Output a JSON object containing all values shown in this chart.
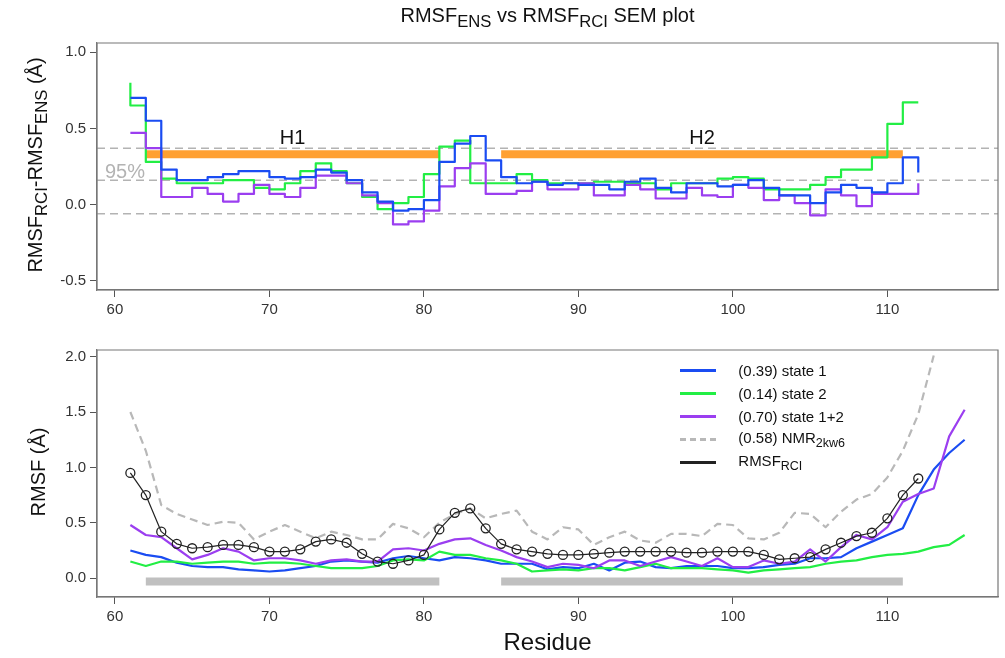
{
  "chart_data": [
    {
      "type": "step",
      "title": "RMSF$_{ENS}$ vs RMSF$_{RCI}$ SEM plot",
      "ylabel": "RMSF$_{RCI}$-RMSF$_{ENS}$ (Å)",
      "x": [
        61,
        62,
        63,
        64,
        65,
        66,
        67,
        68,
        69,
        70,
        71,
        72,
        73,
        74,
        75,
        76,
        77,
        78,
        79,
        80,
        81,
        82,
        83,
        84,
        85,
        86,
        87,
        88,
        89,
        90,
        91,
        92,
        93,
        94,
        95,
        96,
        97,
        98,
        99,
        100,
        101,
        102,
        103,
        104,
        105,
        106,
        107,
        108,
        109,
        110,
        111,
        112
      ],
      "xlim": [
        58.84,
        117.16
      ],
      "xticks": [
        60,
        70,
        80,
        90,
        100,
        110
      ],
      "ylim": [
        -0.56,
        1.06
      ],
      "yticks": [
        {
          "value": -0.5,
          "label": "-0.5"
        },
        {
          "value": 0,
          "label": "0.0"
        },
        {
          "value": 0.5,
          "label": "0.5"
        },
        {
          "value": 1,
          "label": "1.0"
        }
      ],
      "marker": "none",
      "series": [
        {
          "type": "line",
          "name": "H1",
          "color": "#ffa032",
          "x": [
            62,
            81
          ],
          "values": [
            0.33,
            0.33
          ]
        },
        {
          "type": "line",
          "name": "H2",
          "color": "#ffa032",
          "x": [
            85,
            111
          ],
          "values": [
            0.33,
            0.33
          ]
        },
        {
          "color": "#22ee44",
          "x": [
            61,
            61,
            62,
            63,
            64,
            65,
            66,
            67,
            68,
            69,
            70,
            71,
            72,
            73,
            74,
            75,
            76,
            77,
            78,
            79,
            80,
            81,
            82,
            83,
            84,
            85,
            86,
            87,
            88,
            89,
            90,
            91,
            92,
            93,
            94,
            95,
            96,
            97,
            98,
            99,
            100,
            101,
            102,
            103,
            104,
            105,
            106,
            107,
            108,
            109,
            110,
            111,
            112
          ],
          "values": [
            0.8,
            0.65,
            0.28,
            0.17,
            0.14,
            0.14,
            0.14,
            0.16,
            0.16,
            0.11,
            0.1,
            0.14,
            0.22,
            0.27,
            0.22,
            0.14,
            0.05,
            -0.03,
            0.01,
            0.05,
            0.2,
            0.38,
            0.42,
            0.14,
            0.14,
            0.14,
            0.2,
            0.16,
            0.14,
            0.14,
            0.14,
            0.15,
            0.15,
            0.14,
            0.14,
            0.1,
            0.14,
            0.14,
            0.14,
            0.17,
            0.18,
            0.17,
            0.1,
            0.1,
            0.1,
            0.13,
            0.18,
            0.23,
            0.23,
            0.31,
            0.53,
            0.67,
            0.67
          ]
        },
        {
          "color": "#9b3ef0",
          "values": [
            0.47,
            0.37,
            0.05,
            0.05,
            0.11,
            0.07,
            0.02,
            0.07,
            0.13,
            0.07,
            0.05,
            0.11,
            0.19,
            0.19,
            0.14,
            0.06,
            0.01,
            -0.13,
            -0.11,
            -0.04,
            0.12,
            0.24,
            0.27,
            0.07,
            0.07,
            0.09,
            0.15,
            0.1,
            0.1,
            0.14,
            0.06,
            0.06,
            0.13,
            0.1,
            0.04,
            0.04,
            0.11,
            0.06,
            0.05,
            0.13,
            0.11,
            0.03,
            0.06,
            0.01,
            -0.07,
            0.1,
            0.06,
            -0.01,
            0.07,
            0.07,
            0.07,
            0.14
          ]
        },
        {
          "color": "#1a4cf2",
          "values": [
            0.7,
            0.55,
            0.23,
            0.16,
            0.16,
            0.18,
            0.2,
            0.22,
            0.22,
            0.18,
            0.17,
            0.18,
            0.23,
            0.21,
            0.16,
            0.08,
            0.02,
            -0.04,
            -0.03,
            0.03,
            0.28,
            0.4,
            0.45,
            0.29,
            0.18,
            0.14,
            0.15,
            0.13,
            0.14,
            0.13,
            0.13,
            0.1,
            0.15,
            0.17,
            0.11,
            0.08,
            0.14,
            0.14,
            0.12,
            0.13,
            0.16,
            0.11,
            0.06,
            0.06,
            0.01,
            0.08,
            0.13,
            0.11,
            0.08,
            0.14,
            0.31,
            0.21
          ]
        }
      ],
      "ref_lines": [
        {
          "axis": "y",
          "value": 0.37,
          "color": "#b3b3b3",
          "line_style": "dashed"
        },
        {
          "axis": "y",
          "value": 0.16,
          "color": "#b3b3b3",
          "line_style": "dashed"
        },
        {
          "axis": "y",
          "value": -0.06,
          "color": "#b3b3b3",
          "line_style": "dashed"
        }
      ],
      "annotations": [
        "95%"
      ]
    },
    {
      "type": "line",
      "xlabel": "Residue",
      "ylabel": "RMSF (Å)",
      "x": [
        61,
        62,
        63,
        64,
        65,
        66,
        67,
        68,
        69,
        70,
        71,
        72,
        73,
        74,
        75,
        76,
        77,
        78,
        79,
        80,
        81,
        82,
        83,
        84,
        85,
        86,
        87,
        88,
        89,
        90,
        91,
        92,
        93,
        94,
        95,
        96,
        97,
        98,
        99,
        100,
        101,
        102,
        103,
        104,
        105,
        106,
        107,
        108,
        109,
        110,
        111,
        112,
        113,
        114,
        115
      ],
      "xlim": [
        58.84,
        117.16
      ],
      "xticks": [
        60,
        70,
        80,
        90,
        100,
        110
      ],
      "ylim": [
        -0.17,
        2.06
      ],
      "yticks": [
        {
          "value": 0,
          "label": "0.0"
        },
        {
          "value": 0.5,
          "label": "0.5"
        },
        {
          "value": 1,
          "label": "1.0"
        },
        {
          "value": 1.5,
          "label": "1.5"
        },
        {
          "value": 2,
          "label": "2.0"
        }
      ],
      "marker": "none",
      "legend": "top right",
      "series": [
        {
          "color": "#c0c0c0",
          "x": [
            62,
            81
          ],
          "values": [
            -0.03,
            -0.03
          ]
        },
        {
          "color": "#c0c0c0",
          "x": [
            85,
            111
          ],
          "values": [
            -0.03,
            -0.03
          ]
        },
        {
          "name": "(0.39) state 1",
          "color": "#1a4cf2",
          "values": [
            0.25,
            0.21,
            0.19,
            0.14,
            0.11,
            0.1,
            0.1,
            0.08,
            0.07,
            0.06,
            0.07,
            0.09,
            0.11,
            0.15,
            0.16,
            0.15,
            0.14,
            0.18,
            0.2,
            0.18,
            0.16,
            0.19,
            0.18,
            0.16,
            0.13,
            0.13,
            0.13,
            0.08,
            0.1,
            0.09,
            0.13,
            0.07,
            0.14,
            0.15,
            0.1,
            0.09,
            0.11,
            0.11,
            0.11,
            0.09,
            0.09,
            0.1,
            0.12,
            0.13,
            0.18,
            0.18,
            0.19,
            0.27,
            0.33,
            0.39,
            0.45,
            0.75,
            0.98,
            1.13,
            1.25
          ]
        },
        {
          "name": "(0.14) state 2",
          "color": "#22ee44",
          "values": [
            0.15,
            0.11,
            0.15,
            0.15,
            0.13,
            0.14,
            0.15,
            0.15,
            0.13,
            0.14,
            0.14,
            0.13,
            0.11,
            0.09,
            0.09,
            0.09,
            0.11,
            0.16,
            0.17,
            0.16,
            0.24,
            0.21,
            0.21,
            0.18,
            0.16,
            0.13,
            0.06,
            0.07,
            0.08,
            0.07,
            0.09,
            0.09,
            0.07,
            0.1,
            0.13,
            0.09,
            0.09,
            0.09,
            0.08,
            0.07,
            0.05,
            0.07,
            0.08,
            0.09,
            0.1,
            0.13,
            0.15,
            0.16,
            0.19,
            0.21,
            0.22,
            0.24,
            0.28,
            0.3,
            0.39
          ]
        },
        {
          "name": "(0.70) state 1+2",
          "color": "#9b3ef0",
          "values": [
            0.48,
            0.39,
            0.37,
            0.27,
            0.17,
            0.21,
            0.27,
            0.24,
            0.16,
            0.18,
            0.18,
            0.16,
            0.13,
            0.16,
            0.17,
            0.15,
            0.15,
            0.26,
            0.27,
            0.25,
            0.31,
            0.35,
            0.36,
            0.3,
            0.25,
            0.19,
            0.15,
            0.1,
            0.13,
            0.12,
            0.09,
            0.16,
            0.16,
            0.11,
            0.15,
            0.19,
            0.15,
            0.11,
            0.18,
            0.1,
            0.1,
            0.16,
            0.13,
            0.15,
            0.26,
            0.15,
            0.28,
            0.39,
            0.35,
            0.46,
            0.69,
            0.76,
            0.81,
            1.28,
            1.52
          ]
        },
        {
          "name": "(0.58) NMR$_{2kw6}$",
          "color": "#b8b8b8",
          "line_style": "dashed",
          "x": [
            61,
            62,
            63,
            64,
            65,
            66,
            67,
            68,
            69,
            70,
            71,
            72,
            73,
            74,
            75,
            76,
            77,
            78,
            79,
            80,
            81,
            82,
            83,
            84,
            85,
            86,
            87,
            88,
            89,
            90,
            91,
            92,
            93,
            94,
            95,
            96,
            97,
            98,
            99,
            100,
            101,
            102,
            103,
            104,
            105,
            106,
            107,
            108,
            109,
            110,
            111,
            112,
            113
          ],
          "values": [
            1.5,
            1.15,
            0.66,
            0.58,
            0.53,
            0.48,
            0.51,
            0.5,
            0.35,
            0.42,
            0.48,
            0.42,
            0.36,
            0.42,
            0.39,
            0.35,
            0.35,
            0.49,
            0.45,
            0.37,
            0.5,
            0.58,
            0.63,
            0.54,
            0.58,
            0.61,
            0.42,
            0.35,
            0.46,
            0.44,
            0.3,
            0.37,
            0.42,
            0.34,
            0.32,
            0.4,
            0.4,
            0.38,
            0.49,
            0.48,
            0.36,
            0.35,
            0.41,
            0.59,
            0.58,
            0.46,
            0.6,
            0.71,
            0.76,
            0.91,
            1.15,
            1.48,
            2.01
          ]
        },
        {
          "name": "RMSF$_{RCI}$",
          "color": "#222222",
          "marker": "circle",
          "x": [
            61,
            62,
            63,
            64,
            65,
            66,
            67,
            68,
            69,
            70,
            71,
            72,
            73,
            74,
            75,
            76,
            77,
            78,
            79,
            80,
            81,
            82,
            83,
            84,
            85,
            86,
            87,
            88,
            89,
            90,
            91,
            92,
            93,
            94,
            95,
            96,
            97,
            98,
            99,
            100,
            101,
            102,
            103,
            104,
            105,
            106,
            107,
            108,
            109,
            110,
            111,
            112
          ],
          "values": [
            0.95,
            0.75,
            0.42,
            0.31,
            0.27,
            0.28,
            0.3,
            0.3,
            0.28,
            0.24,
            0.24,
            0.26,
            0.33,
            0.35,
            0.32,
            0.22,
            0.15,
            0.13,
            0.16,
            0.21,
            0.44,
            0.59,
            0.63,
            0.45,
            0.31,
            0.26,
            0.24,
            0.22,
            0.21,
            0.21,
            0.22,
            0.23,
            0.24,
            0.24,
            0.24,
            0.24,
            0.23,
            0.23,
            0.24,
            0.24,
            0.24,
            0.21,
            0.17,
            0.18,
            0.19,
            0.26,
            0.32,
            0.38,
            0.41,
            0.54,
            0.75,
            0.9
          ]
        }
      ]
    }
  ]
}
